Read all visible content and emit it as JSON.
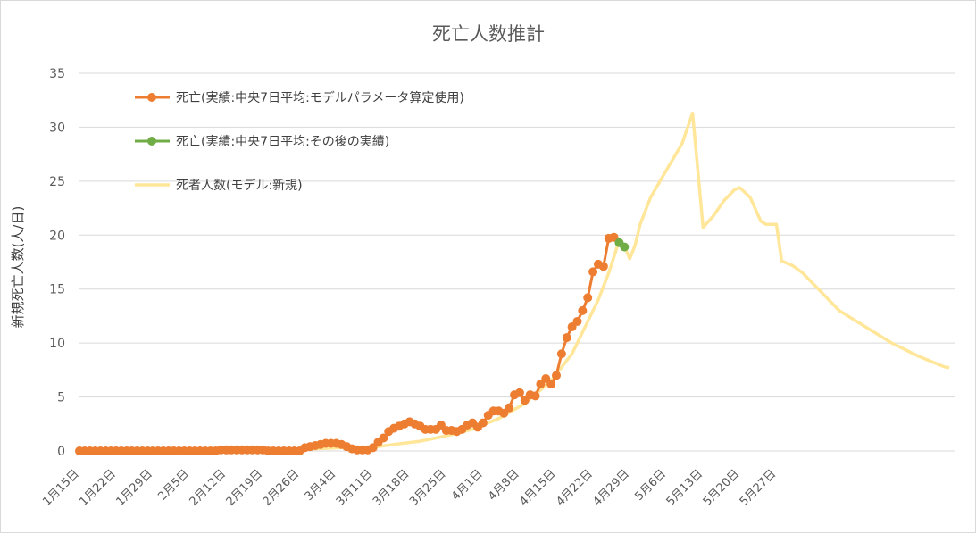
{
  "chart_data": {
    "type": "line",
    "title": "死亡人数推計",
    "ylabel": "新規死亡人数(人/日)",
    "xlabel": "",
    "ylim": [
      0,
      35
    ],
    "yticks": [
      "0",
      "5",
      "10",
      "15",
      "20",
      "25",
      "30",
      "35"
    ],
    "x_start": "1月15日",
    "x_ticks": [
      "1月15日",
      "1月22日",
      "1月29日",
      "2月5日",
      "2月12日",
      "2月19日",
      "2月26日",
      "3月4日",
      "3月11日",
      "3月18日",
      "3月25日",
      "4月1日",
      "4月8日",
      "4月15日",
      "4月22日",
      "4月29日",
      "5月6日",
      "5月13日",
      "5月20日",
      "5月27日"
    ],
    "grid": true,
    "legend_position": "top-left",
    "series": [
      {
        "name": "死亡(実績:中央7日平均:モデルパラメータ算定使用)",
        "color": "#ED7D31",
        "marker": true,
        "x_start_index": 0,
        "values": [
          0,
          0,
          0,
          0,
          0,
          0,
          0,
          0,
          0,
          0,
          0,
          0,
          0,
          0,
          0,
          0,
          0,
          0,
          0,
          0,
          0,
          0,
          0,
          0,
          0,
          0,
          0,
          0.1,
          0.1,
          0.1,
          0.1,
          0.1,
          0.1,
          0.1,
          0.1,
          0.1,
          0,
          0,
          0,
          0,
          0,
          0,
          0,
          0.3,
          0.4,
          0.5,
          0.6,
          0.7,
          0.7,
          0.7,
          0.6,
          0.4,
          0.2,
          0.1,
          0.1,
          0.1,
          0.3,
          0.8,
          1.2,
          1.8,
          2.1,
          2.3,
          2.5,
          2.7,
          2.5,
          2.3,
          2.0,
          2.0,
          2.0,
          2.4,
          1.9,
          1.9,
          1.8,
          2.0,
          2.4,
          2.6,
          2.2,
          2.6,
          3.3,
          3.7,
          3.7,
          3.5,
          4.0,
          5.2,
          5.4,
          4.7,
          5.2,
          5.1,
          6.2,
          6.7,
          6.2,
          7.0,
          9.0,
          10.5,
          11.5,
          12.0,
          13.0,
          14.2,
          16.6,
          17.3,
          17.1,
          19.7,
          19.8
        ]
      },
      {
        "name": "死亡(実績:中央7日平均:その後の実績)",
        "color": "#70AD47",
        "marker": true,
        "x_start_index": 103,
        "values": [
          19.3,
          18.9
        ]
      },
      {
        "name": "死者人数(モデル:新規)",
        "color": "#FFE699",
        "marker": false,
        "points": [
          [
            13,
            0
          ],
          [
            20,
            0
          ],
          [
            30,
            0.1
          ],
          [
            40,
            0.2
          ],
          [
            45,
            0.2
          ],
          [
            50,
            0.3
          ],
          [
            54,
            0.3
          ],
          [
            57,
            0.4
          ],
          [
            60,
            0.6
          ],
          [
            65,
            0.9
          ],
          [
            70,
            1.4
          ],
          [
            75,
            2.0
          ],
          [
            80,
            3.0
          ],
          [
            85,
            4.4
          ],
          [
            90,
            6.5
          ],
          [
            94,
            9.0
          ],
          [
            97,
            12.0
          ],
          [
            99,
            14.0
          ],
          [
            101,
            16.5
          ],
          [
            102,
            18.0
          ],
          [
            103,
            19.5
          ],
          [
            104,
            19.0
          ],
          [
            105,
            17.8
          ],
          [
            106,
            19.0
          ],
          [
            107,
            21.0
          ],
          [
            109,
            23.5
          ],
          [
            112,
            26.0
          ],
          [
            115,
            28.5
          ],
          [
            117,
            31.3
          ],
          [
            118,
            26.0
          ],
          [
            119,
            20.7
          ],
          [
            121,
            21.8
          ],
          [
            123,
            23.2
          ],
          [
            125,
            24.2
          ],
          [
            126,
            24.4
          ],
          [
            128,
            23.5
          ],
          [
            130,
            21.3
          ],
          [
            131,
            21.0
          ],
          [
            133,
            21.0
          ],
          [
            134,
            17.6
          ],
          [
            136,
            17.2
          ],
          [
            138,
            16.5
          ],
          [
            141,
            15.0
          ],
          [
            145,
            13.0
          ],
          [
            150,
            11.5
          ],
          [
            155,
            10.0
          ],
          [
            160,
            8.8
          ],
          [
            165,
            7.8
          ],
          [
            166,
            7.7
          ]
        ]
      }
    ]
  }
}
